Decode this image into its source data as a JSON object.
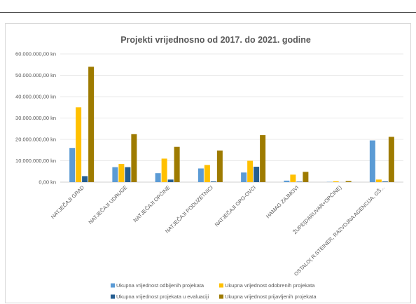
{
  "chart_data": {
    "type": "bar",
    "title": "Projekti vrijednosno od 2017. do 2021. godine",
    "xlabel": "",
    "ylabel": "",
    "ylim": [
      0,
      60000000
    ],
    "y_ticks": [
      "0,00 kn",
      "10.000.000,00 kn",
      "20.000.000,00 kn",
      "30.000.000,00 kn",
      "40.000.000,00 kn",
      "50.000.000,00 kn",
      "60.000.000,00 kn"
    ],
    "categories": [
      "NATJEČAJI GRAD",
      "NATJEČAJI UDRUGE",
      "NATJEČAJI OPĆINE",
      "NATJEČAJI PODUZETNICI",
      "NATJEČAJI OPG-OVCI",
      "HAMAG ZAJMOVI",
      "ŽUPE(DARUVAR+OPĆINE)",
      "OSTALO( R.STEINER, RAZVOJNA AGENCIJA, GŠ..."
    ],
    "series": [
      {
        "name": "Ukupna vrijednost odbijenih projekata",
        "color": "#5b9bd5",
        "values": [
          16000000,
          7000000,
          4200000,
          6400000,
          4500000,
          700000,
          100000,
          19500000
        ]
      },
      {
        "name": "Ukupna vrijednost odobrenih projekata",
        "color": "#ffc000",
        "values": [
          35000000,
          8500000,
          11000000,
          8000000,
          10000000,
          3500000,
          400000,
          1200000
        ]
      },
      {
        "name": "Ukupna vrijednost projekata u evaluaciji",
        "color": "#255e91",
        "values": [
          2800000,
          7000000,
          1200000,
          300000,
          7200000,
          200000,
          0,
          300000
        ]
      },
      {
        "name": "Ukupna vrijednost prijavljenih projekata",
        "color": "#9e7b00",
        "values": [
          54000000,
          22500000,
          16500000,
          14800000,
          22000000,
          4800000,
          500000,
          21200000
        ]
      }
    ],
    "grid": true,
    "legend_position": "bottom"
  }
}
